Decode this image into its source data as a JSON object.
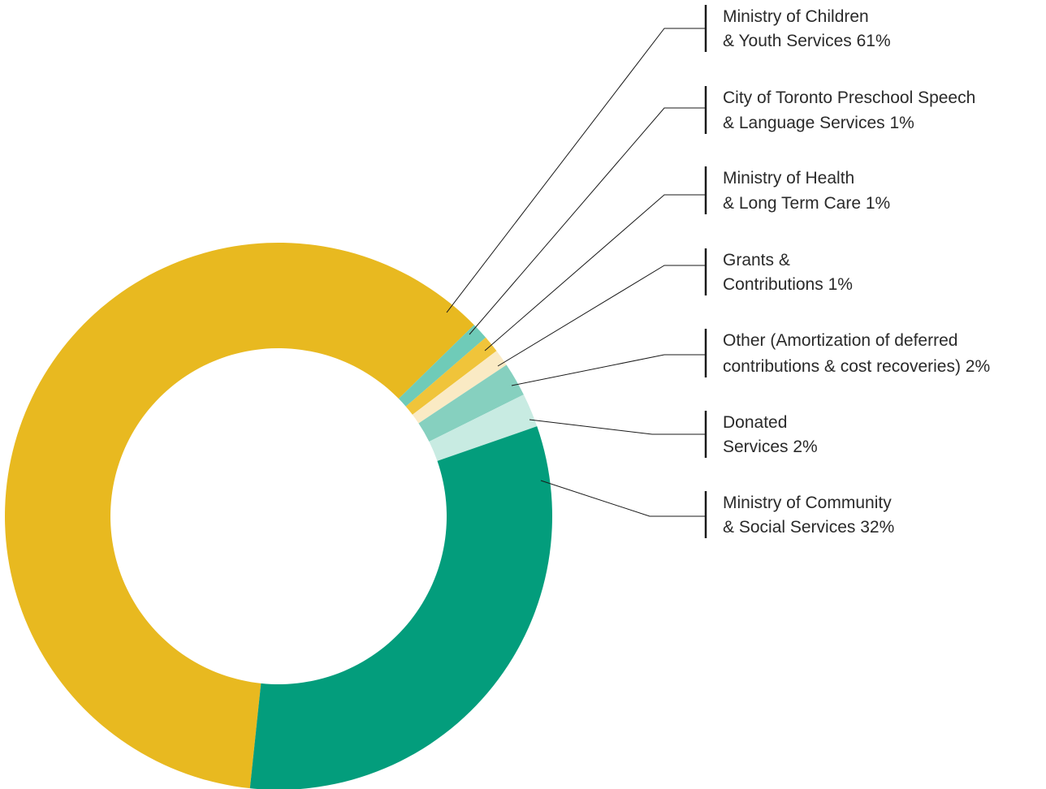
{
  "chart_data": {
    "type": "pie",
    "subtype": "donut",
    "slices": [
      {
        "line1": "Ministry of Children",
        "line2": "& Youth Services 61%",
        "value": 61,
        "color": "#e8b920"
      },
      {
        "line1": "City of Toronto Preschool Speech",
        "line2": "& Language Services 1%",
        "value": 1,
        "color": "#6fcbb8"
      },
      {
        "line1": "Ministry of Health",
        "line2": "& Long Term Care 1%",
        "value": 1,
        "color": "#f0c43a"
      },
      {
        "line1": "Grants &",
        "line2": "Contributions 1%",
        "value": 1,
        "color": "#faeac4"
      },
      {
        "line1": "Other (Amortization of deferred",
        "line2": "contributions & cost recoveries) 2%",
        "value": 2,
        "color": "#86d0bf"
      },
      {
        "line1": "Donated",
        "line2": "Services 2%",
        "value": 2,
        "color": "#c8ebe2"
      },
      {
        "line1": "Ministry of Community",
        "line2": "& Social Services 32%",
        "value": 32,
        "color": "#039d7c"
      }
    ],
    "legend_position": "right"
  }
}
